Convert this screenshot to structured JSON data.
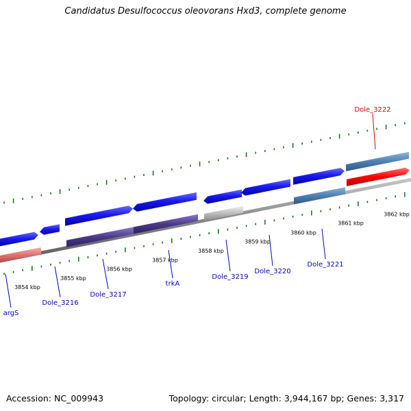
{
  "title": "Candidatus Desulfococcus oleovorans Hxd3, complete genome",
  "footer": {
    "accession": "Accession: NC_009943",
    "stats": "Topology: circular; Length: 3,944,167 bp; Genes: 3,317"
  },
  "colors": {
    "forward": "#1a1aee",
    "reverse_rna": "#e07070",
    "reverse_purple": "#4a3a8a",
    "pseudo_grey": "#bdbdbd",
    "steel": "#4f7fb0",
    "highlight": "#ff0000",
    "backbone": "#888888",
    "tick": "#1a7a1a",
    "label_blue": "#0000cc",
    "label_red": "#dd0000"
  },
  "ticks": [
    {
      "label": "3854 kbp"
    },
    {
      "label": "3855 kbp"
    },
    {
      "label": "3856 kbp"
    },
    {
      "label": "3857 kbp"
    },
    {
      "label": "3858 kbp"
    },
    {
      "label": "3859 kbp"
    },
    {
      "label": "3860 kbp"
    },
    {
      "label": "3861 kbp"
    },
    {
      "label": "3862 kbp"
    }
  ],
  "gene_labels": [
    {
      "name": "argS",
      "color": "blue"
    },
    {
      "name": "Dole_3216",
      "color": "blue"
    },
    {
      "name": "Dole_3217",
      "color": "blue"
    },
    {
      "name": "trkA",
      "color": "blue"
    },
    {
      "name": "Dole_3219",
      "color": "blue"
    },
    {
      "name": "Dole_3220",
      "color": "blue"
    },
    {
      "name": "Dole_3221",
      "color": "blue"
    },
    {
      "name": "Dole_3222",
      "color": "red"
    }
  ]
}
